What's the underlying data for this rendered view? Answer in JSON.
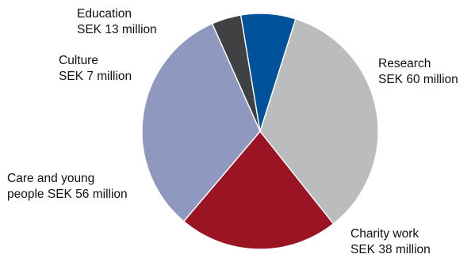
{
  "chart_data": {
    "type": "pie",
    "start_category": "Research",
    "direction": "clockwise",
    "slices": [
      {
        "category": "Research",
        "value": 60,
        "color": "#bbbcbe",
        "label_lines": [
          "Research",
          "SEK 60 million"
        ]
      },
      {
        "category": "Charity work",
        "value": 38,
        "color": "#9b1423",
        "label_lines": [
          "Charity work",
          "SEK 38 million"
        ]
      },
      {
        "category": "Care and young people",
        "value": 56,
        "color": "#8f99c0",
        "label_lines": [
          "Care and young",
          "people SEK 56 million"
        ]
      },
      {
        "category": "Culture",
        "value": 7,
        "color": "#404143",
        "label_lines": [
          "Culture",
          "SEK 7 million"
        ]
      },
      {
        "category": "Education",
        "value": 13,
        "color": "#00529b",
        "label_lines": [
          "Education",
          "SEK 13 million"
        ]
      }
    ]
  }
}
